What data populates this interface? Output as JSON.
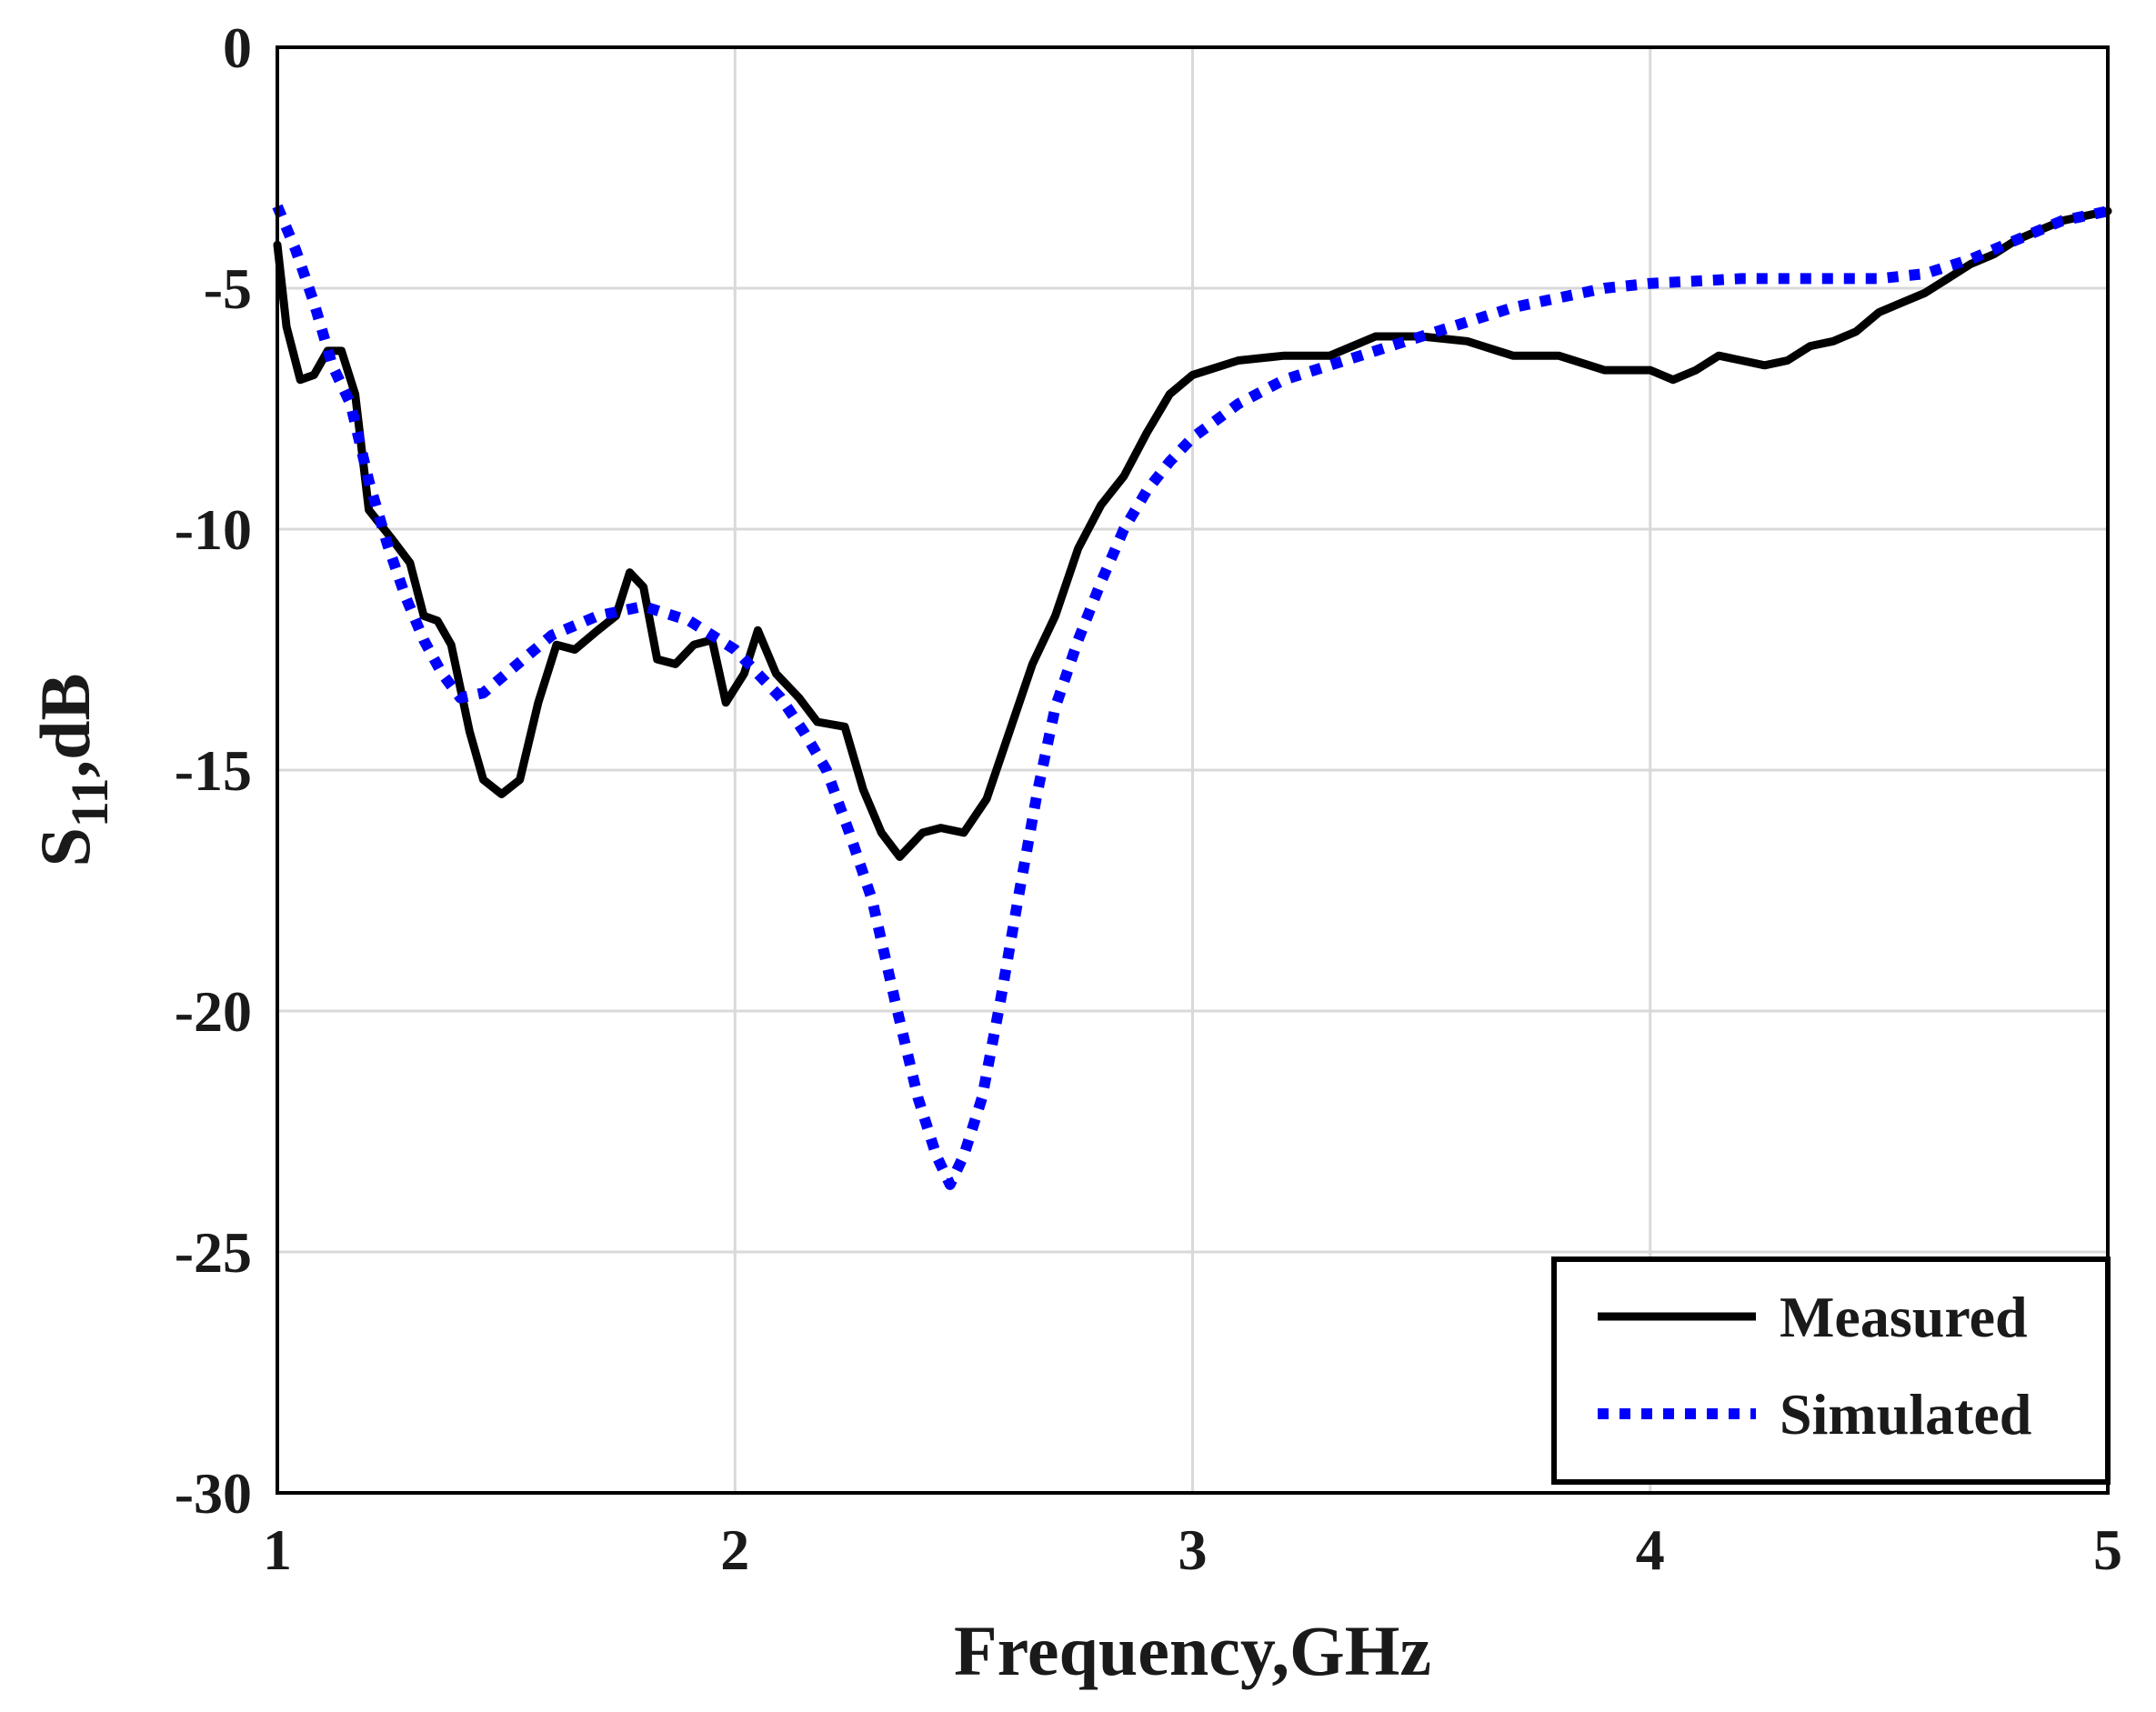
{
  "chart_data": {
    "type": "line",
    "title": "",
    "xlabel": "Frequency,GHz",
    "ylabel": {
      "base": "S",
      "sub": "11",
      "rest": ",dB"
    },
    "xlim": [
      1,
      5
    ],
    "ylim": [
      -30,
      0
    ],
    "xticks": [
      1,
      2,
      3,
      4,
      5
    ],
    "yticks": [
      0,
      -5,
      -10,
      -15,
      -20,
      -25,
      -30
    ],
    "grid": true,
    "legend_position": "bottom-right",
    "series": [
      {
        "name": "Measured",
        "color": "#000000",
        "style": "solid",
        "points": [
          [
            1.0,
            -4.1
          ],
          [
            1.02,
            -5.8
          ],
          [
            1.05,
            -6.9
          ],
          [
            1.08,
            -6.8
          ],
          [
            1.11,
            -6.3
          ],
          [
            1.14,
            -6.3
          ],
          [
            1.17,
            -7.2
          ],
          [
            1.2,
            -9.6
          ],
          [
            1.25,
            -10.2
          ],
          [
            1.29,
            -10.7
          ],
          [
            1.32,
            -11.8
          ],
          [
            1.35,
            -11.9
          ],
          [
            1.38,
            -12.4
          ],
          [
            1.42,
            -14.2
          ],
          [
            1.45,
            -15.2
          ],
          [
            1.49,
            -15.5
          ],
          [
            1.53,
            -15.2
          ],
          [
            1.57,
            -13.6
          ],
          [
            1.61,
            -12.4
          ],
          [
            1.65,
            -12.5
          ],
          [
            1.7,
            -12.1
          ],
          [
            1.74,
            -11.8
          ],
          [
            1.77,
            -10.9
          ],
          [
            1.8,
            -11.2
          ],
          [
            1.83,
            -12.7
          ],
          [
            1.87,
            -12.8
          ],
          [
            1.91,
            -12.4
          ],
          [
            1.95,
            -12.3
          ],
          [
            1.98,
            -13.6
          ],
          [
            2.02,
            -13.0
          ],
          [
            2.05,
            -12.1
          ],
          [
            2.09,
            -13.0
          ],
          [
            2.14,
            -13.5
          ],
          [
            2.18,
            -14.0
          ],
          [
            2.24,
            -14.1
          ],
          [
            2.28,
            -15.4
          ],
          [
            2.32,
            -16.3
          ],
          [
            2.36,
            -16.8
          ],
          [
            2.41,
            -16.3
          ],
          [
            2.45,
            -16.2
          ],
          [
            2.5,
            -16.3
          ],
          [
            2.55,
            -15.6
          ],
          [
            2.6,
            -14.2
          ],
          [
            2.65,
            -12.8
          ],
          [
            2.7,
            -11.8
          ],
          [
            2.75,
            -10.4
          ],
          [
            2.8,
            -9.5
          ],
          [
            2.85,
            -8.9
          ],
          [
            2.9,
            -8.0
          ],
          [
            2.95,
            -7.2
          ],
          [
            3.0,
            -6.8
          ],
          [
            3.1,
            -6.5
          ],
          [
            3.2,
            -6.4
          ],
          [
            3.3,
            -6.4
          ],
          [
            3.4,
            -6.0
          ],
          [
            3.5,
            -6.0
          ],
          [
            3.6,
            -6.1
          ],
          [
            3.7,
            -6.4
          ],
          [
            3.8,
            -6.4
          ],
          [
            3.9,
            -6.7
          ],
          [
            4.0,
            -6.7
          ],
          [
            4.05,
            -6.9
          ],
          [
            4.1,
            -6.7
          ],
          [
            4.15,
            -6.4
          ],
          [
            4.2,
            -6.5
          ],
          [
            4.25,
            -6.6
          ],
          [
            4.3,
            -6.5
          ],
          [
            4.35,
            -6.2
          ],
          [
            4.4,
            -6.1
          ],
          [
            4.45,
            -5.9
          ],
          [
            4.5,
            -5.5
          ],
          [
            4.55,
            -5.3
          ],
          [
            4.6,
            -5.1
          ],
          [
            4.65,
            -4.8
          ],
          [
            4.7,
            -4.5
          ],
          [
            4.75,
            -4.3
          ],
          [
            4.8,
            -4.0
          ],
          [
            4.85,
            -3.8
          ],
          [
            4.9,
            -3.6
          ],
          [
            4.95,
            -3.5
          ],
          [
            5.0,
            -3.4
          ]
        ]
      },
      {
        "name": "Simulated",
        "color": "#0000ff",
        "style": "dotted",
        "points": [
          [
            1.0,
            -3.3
          ],
          [
            1.04,
            -4.2
          ],
          [
            1.08,
            -5.3
          ],
          [
            1.12,
            -6.6
          ],
          [
            1.16,
            -7.4
          ],
          [
            1.2,
            -9.0
          ],
          [
            1.24,
            -10.3
          ],
          [
            1.28,
            -11.4
          ],
          [
            1.32,
            -12.3
          ],
          [
            1.36,
            -13.0
          ],
          [
            1.4,
            -13.5
          ],
          [
            1.45,
            -13.4
          ],
          [
            1.5,
            -13.0
          ],
          [
            1.55,
            -12.6
          ],
          [
            1.6,
            -12.2
          ],
          [
            1.7,
            -11.8
          ],
          [
            1.8,
            -11.6
          ],
          [
            1.9,
            -11.9
          ],
          [
            2.0,
            -12.5
          ],
          [
            2.1,
            -13.5
          ],
          [
            2.15,
            -14.2
          ],
          [
            2.2,
            -15.0
          ],
          [
            2.25,
            -16.3
          ],
          [
            2.3,
            -17.7
          ],
          [
            2.35,
            -19.8
          ],
          [
            2.4,
            -21.8
          ],
          [
            2.44,
            -23.0
          ],
          [
            2.47,
            -23.6
          ],
          [
            2.5,
            -23.0
          ],
          [
            2.54,
            -21.8
          ],
          [
            2.58,
            -19.8
          ],
          [
            2.62,
            -17.6
          ],
          [
            2.66,
            -15.5
          ],
          [
            2.7,
            -13.7
          ],
          [
            2.75,
            -12.3
          ],
          [
            2.8,
            -11.1
          ],
          [
            2.85,
            -10.0
          ],
          [
            2.9,
            -9.2
          ],
          [
            2.95,
            -8.6
          ],
          [
            3.0,
            -8.1
          ],
          [
            3.1,
            -7.4
          ],
          [
            3.2,
            -6.9
          ],
          [
            3.3,
            -6.6
          ],
          [
            3.4,
            -6.3
          ],
          [
            3.5,
            -6.0
          ],
          [
            3.6,
            -5.7
          ],
          [
            3.7,
            -5.4
          ],
          [
            3.8,
            -5.2
          ],
          [
            3.9,
            -5.0
          ],
          [
            4.0,
            -4.9
          ],
          [
            4.1,
            -4.85
          ],
          [
            4.2,
            -4.8
          ],
          [
            4.3,
            -4.8
          ],
          [
            4.4,
            -4.8
          ],
          [
            4.5,
            -4.8
          ],
          [
            4.6,
            -4.7
          ],
          [
            4.7,
            -4.4
          ],
          [
            4.8,
            -4.0
          ],
          [
            4.9,
            -3.6
          ],
          [
            5.0,
            -3.4
          ]
        ]
      }
    ]
  }
}
